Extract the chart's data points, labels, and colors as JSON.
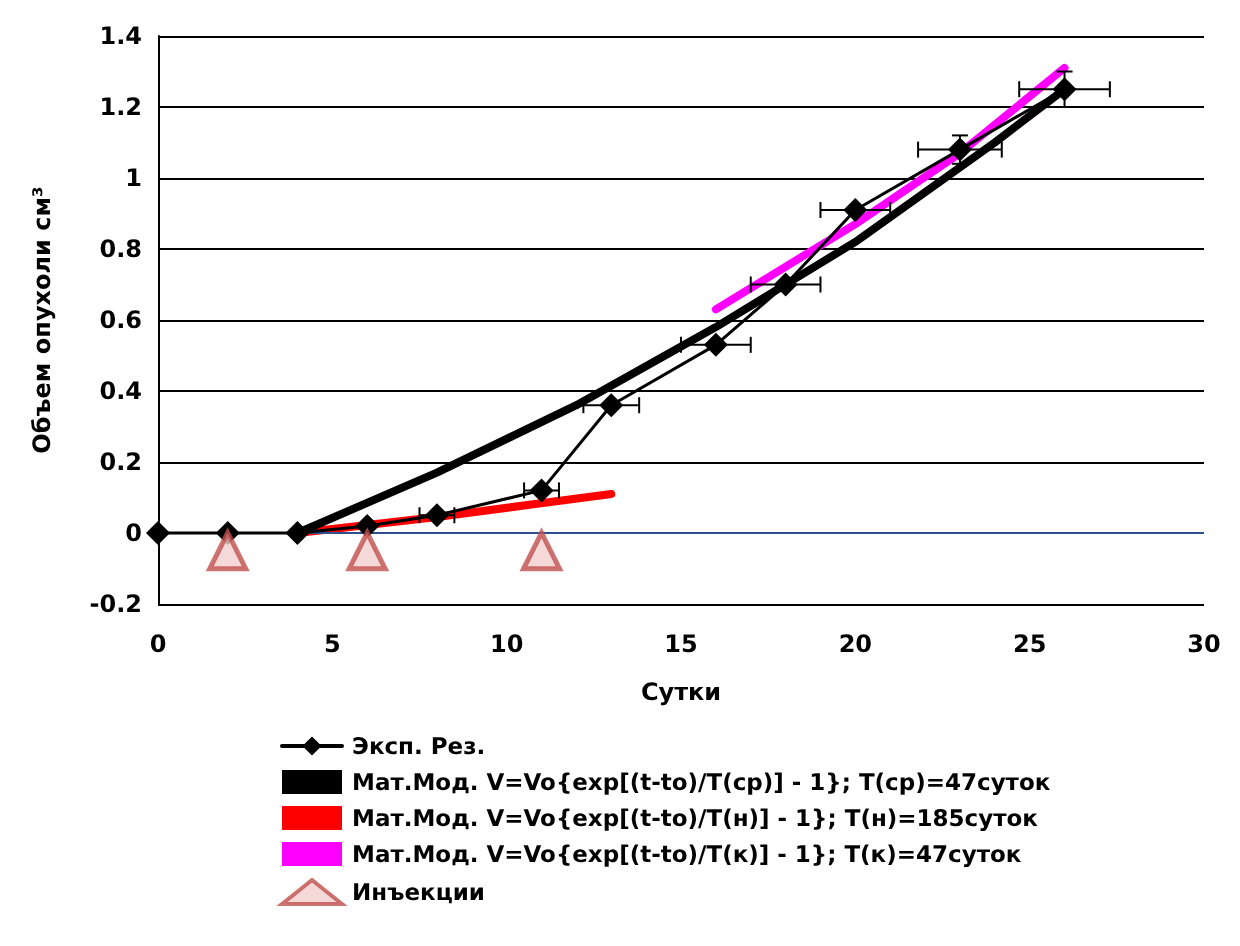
{
  "chart_data": {
    "type": "line",
    "xlabel": "Сутки",
    "ylabel": "Объем опухоли см³",
    "xlim": [
      0,
      30
    ],
    "xticks": [
      0,
      5,
      10,
      15,
      20,
      25,
      30
    ],
    "ylim": [
      -0.2,
      1.4
    ],
    "yticks": [
      -0.2,
      0,
      0.2,
      0.4,
      0.6,
      0.8,
      1,
      1.2,
      1.4
    ],
    "grid": "y",
    "legend": "bottom",
    "line_style": "solid",
    "ref_lines": [
      {
        "axis": "y",
        "value": 0,
        "color": "#2f4f8f"
      }
    ],
    "series": [
      {
        "name": "Эксп. Рез.",
        "marker": "diamond",
        "color": "#000000",
        "x": [
          0,
          2,
          4,
          6,
          8,
          11,
          13,
          16,
          18,
          20,
          23,
          26
        ],
        "values": [
          0,
          0,
          0,
          0.02,
          0.05,
          0.12,
          0.36,
          0.53,
          0.7,
          0.91,
          1.08,
          1.25
        ],
        "xerrors": [
          null,
          null,
          null,
          null,
          0.5,
          0.5,
          0.8,
          1,
          1,
          1,
          1.2,
          1.3
        ],
        "errors": [
          null,
          null,
          null,
          null,
          null,
          null,
          null,
          null,
          null,
          null,
          0.04,
          0.05
        ]
      },
      {
        "name": "Мат.Мод. V=Vo{exp[(t-to)/T(ср)] - 1}; T(ср)=47суток",
        "marker": "none",
        "color": "#000000",
        "x": [
          4,
          8,
          12,
          16,
          20,
          24,
          26
        ],
        "values": [
          0,
          0.17,
          0.36,
          0.58,
          0.82,
          1.1,
          1.25
        ]
      },
      {
        "name": "Мат.Мод. V=Vo{exp[(t-to)/T(н)] - 1}; T(н)=185суток",
        "marker": "none",
        "color": "#ff0000",
        "x": [
          4,
          8,
          13
        ],
        "values": [
          0,
          0.045,
          0.11
        ]
      },
      {
        "name": "Мат.Мод. V=Vo{exp[(t-to)/T(к)] - 1}; T(к)=47суток",
        "marker": "none",
        "color": "#ff00ff",
        "x": [
          16,
          20,
          23,
          26
        ],
        "values": [
          0.63,
          0.87,
          1.07,
          1.31
        ]
      },
      {
        "name": "Инъекции",
        "type": "scatter",
        "marker": "triangle",
        "color": "#c0504d",
        "x": [
          2,
          6,
          11
        ],
        "values": [
          -0.05,
          -0.05,
          -0.05
        ]
      }
    ]
  }
}
